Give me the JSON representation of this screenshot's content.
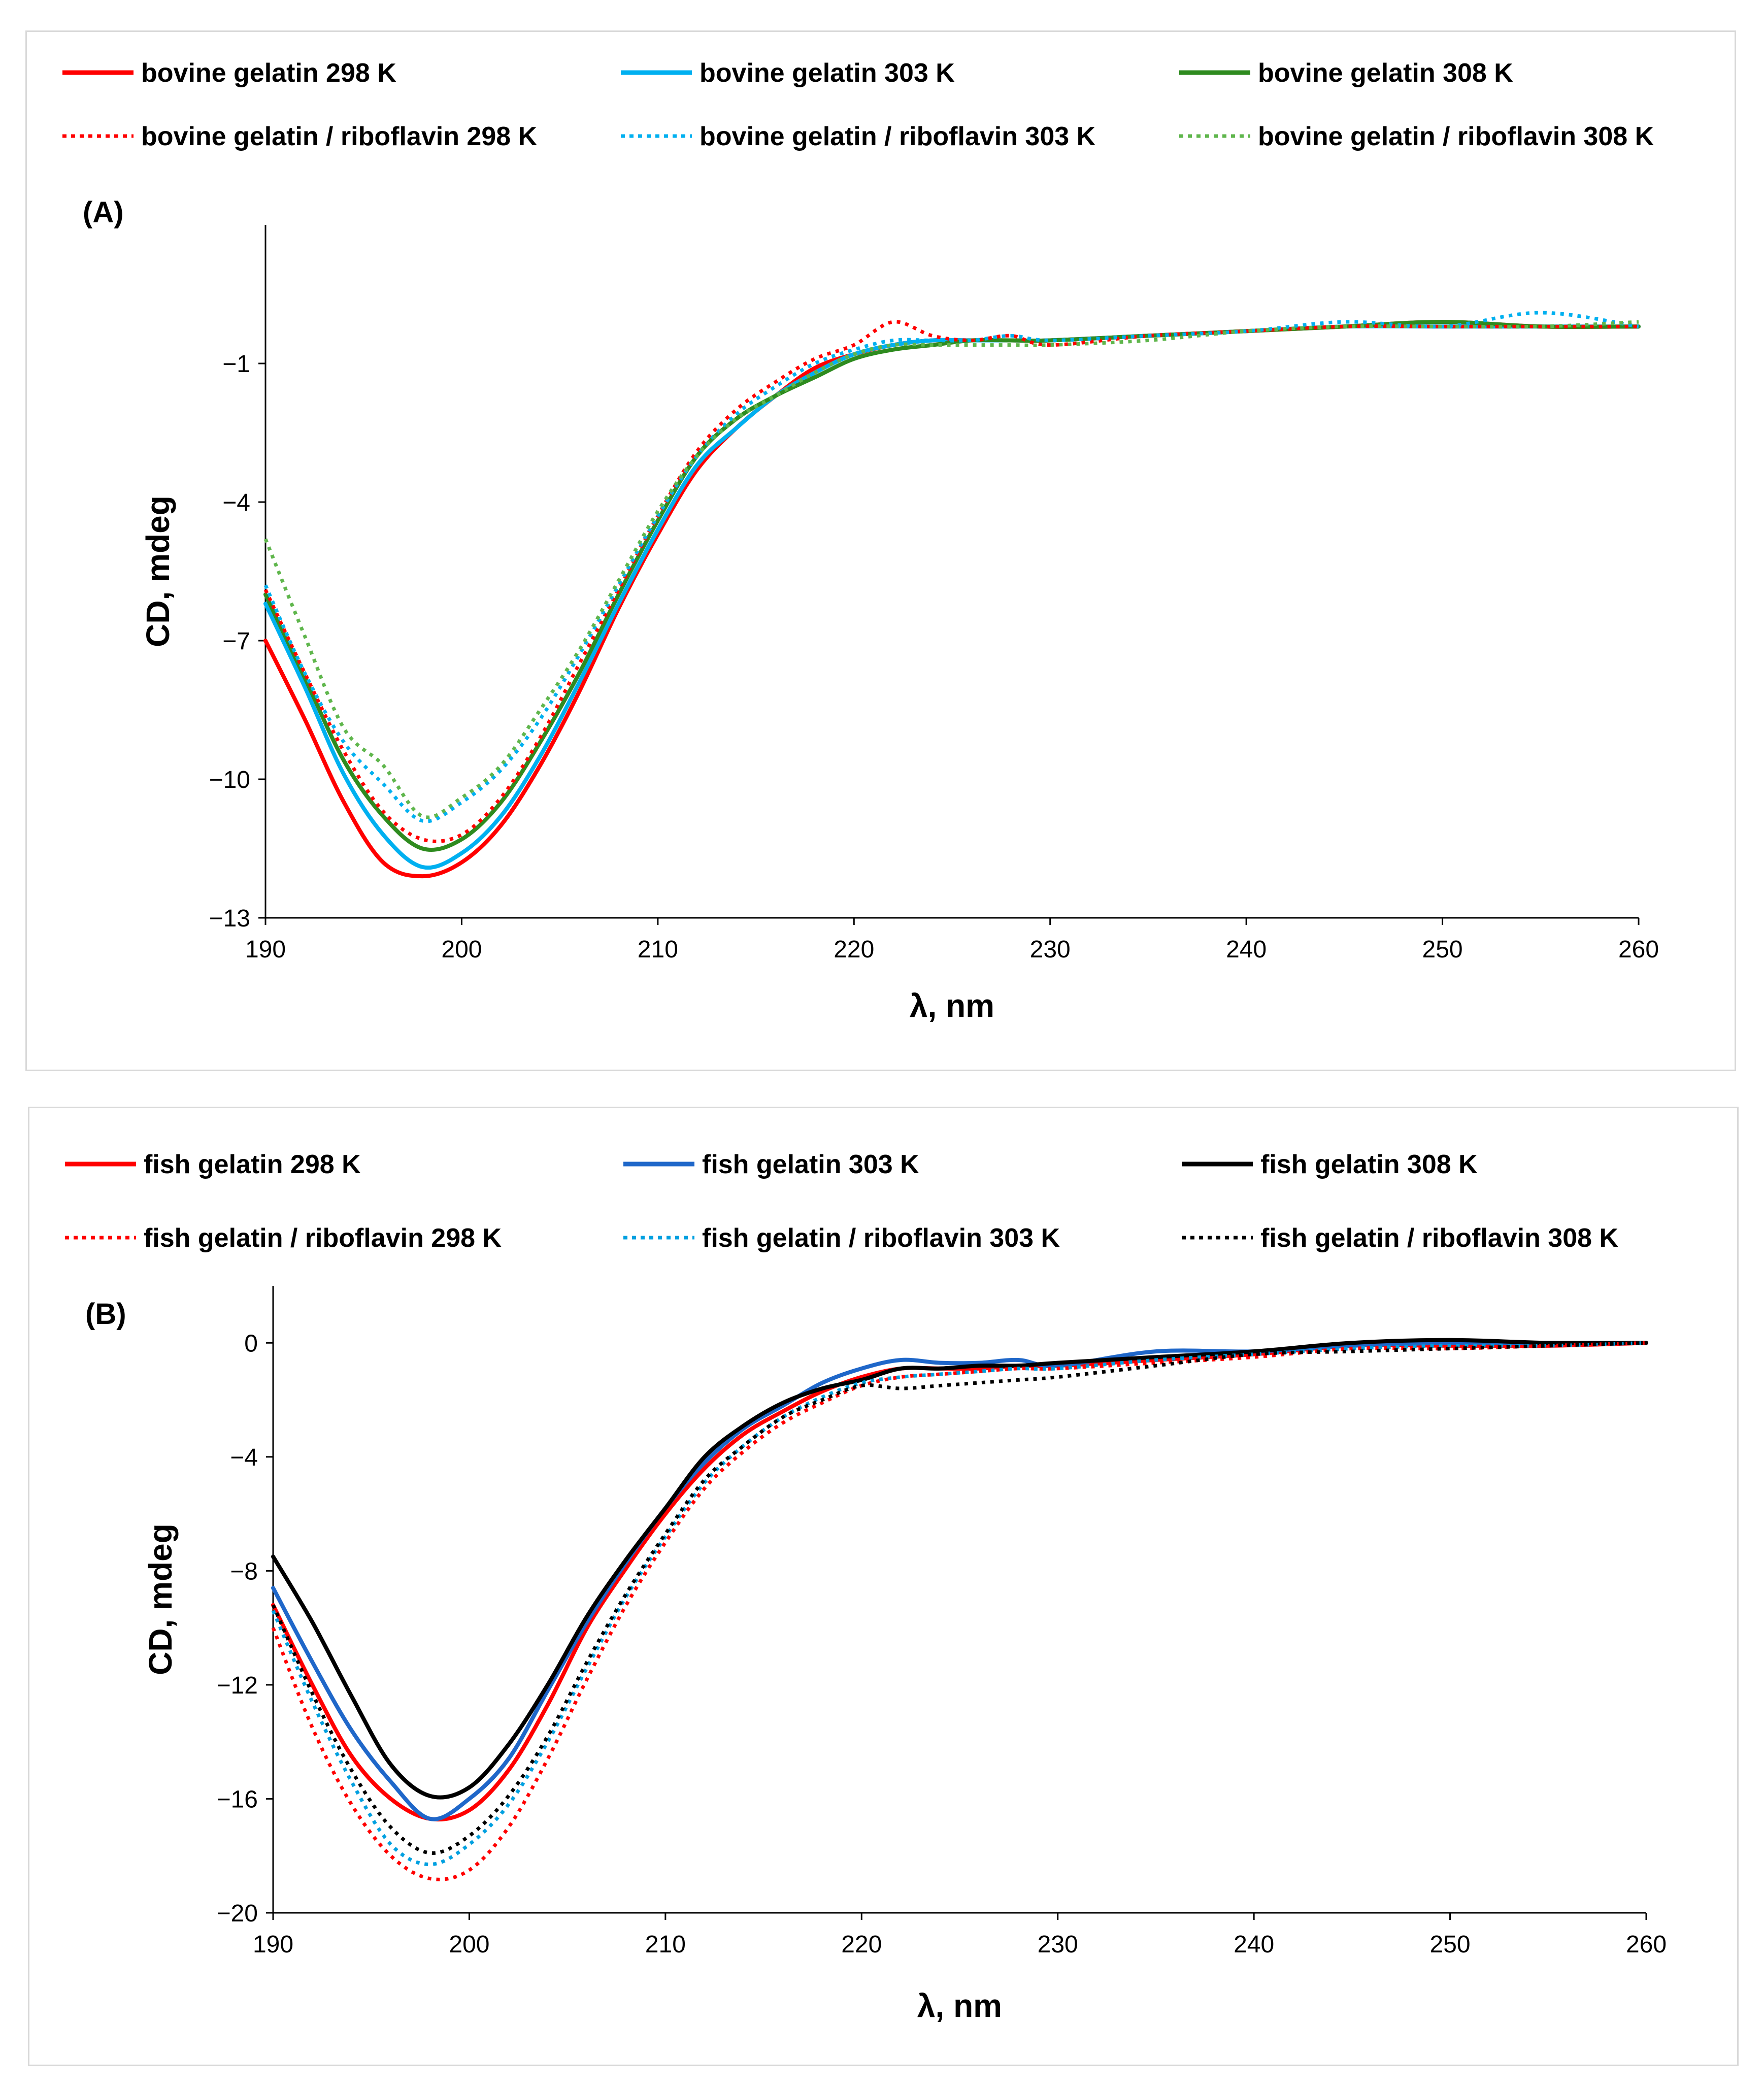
{
  "chart_data": [
    {
      "type": "line",
      "panel_label": "(A)",
      "xlabel": "λ, nm",
      "ylabel": "CD, mdeg",
      "xlim": [
        190,
        260
      ],
      "ylim": [
        -13,
        2
      ],
      "xticks": [
        190,
        200,
        210,
        220,
        230,
        240,
        250,
        260
      ],
      "yticks": [
        -1,
        -4,
        -7,
        -10,
        -13
      ],
      "xtick_labels": [
        "190",
        "200",
        "210",
        "220",
        "230",
        "240",
        "250",
        "260"
      ],
      "ytick_labels": [
        "−1",
        "−4",
        "−7",
        "−10",
        "−13"
      ],
      "grid": false,
      "legend": "top",
      "series": [
        {
          "name": "bovine gelatin 298 K",
          "color": "#ff0000",
          "style": "solid",
          "x": [
            190,
            192,
            194,
            196,
            198,
            200,
            202,
            204,
            206,
            208,
            210,
            212,
            214,
            216,
            218,
            220,
            222,
            224,
            226,
            228,
            230,
            235,
            240,
            245,
            250,
            255,
            260
          ],
          "y": [
            -7.0,
            -8.7,
            -10.5,
            -11.8,
            -12.1,
            -11.8,
            -11.0,
            -9.7,
            -8.1,
            -6.3,
            -4.7,
            -3.3,
            -2.4,
            -1.7,
            -1.1,
            -0.8,
            -0.6,
            -0.5,
            -0.5,
            -0.5,
            -0.5,
            -0.4,
            -0.3,
            -0.2,
            -0.1,
            -0.2,
            -0.2
          ]
        },
        {
          "name": "bovine gelatin 303 K",
          "color": "#00b0f0",
          "style": "solid",
          "x": [
            190,
            192,
            194,
            196,
            198,
            200,
            202,
            204,
            206,
            208,
            210,
            212,
            214,
            216,
            218,
            220,
            222,
            224,
            226,
            228,
            230,
            235,
            240,
            245,
            250,
            255,
            260
          ],
          "y": [
            -6.2,
            -8.0,
            -9.9,
            -11.2,
            -11.9,
            -11.6,
            -10.8,
            -9.5,
            -7.9,
            -6.2,
            -4.6,
            -3.2,
            -2.4,
            -1.7,
            -1.2,
            -0.8,
            -0.6,
            -0.5,
            -0.5,
            -0.5,
            -0.5,
            -0.4,
            -0.3,
            -0.2,
            -0.2,
            -0.2,
            -0.2
          ]
        },
        {
          "name": "bovine gelatin 308 K",
          "color": "#2e8b1f",
          "style": "solid",
          "x": [
            190,
            192,
            194,
            196,
            198,
            200,
            202,
            204,
            206,
            208,
            210,
            212,
            214,
            216,
            218,
            220,
            222,
            224,
            226,
            228,
            230,
            235,
            240,
            245,
            250,
            255,
            260
          ],
          "y": [
            -6.0,
            -7.8,
            -9.6,
            -10.8,
            -11.5,
            -11.3,
            -10.5,
            -9.2,
            -7.7,
            -6.0,
            -4.4,
            -3.0,
            -2.2,
            -1.7,
            -1.3,
            -0.9,
            -0.7,
            -0.6,
            -0.5,
            -0.5,
            -0.5,
            -0.4,
            -0.3,
            -0.2,
            -0.1,
            -0.2,
            -0.2
          ]
        },
        {
          "name": "bovine gelatin / riboflavin 298 K",
          "color": "#ff0000",
          "style": "dotted",
          "x": [
            190,
            192,
            194,
            196,
            198,
            200,
            202,
            204,
            206,
            208,
            210,
            212,
            214,
            216,
            218,
            220,
            222,
            224,
            226,
            228,
            230,
            235,
            240,
            245,
            250,
            255,
            260
          ],
          "y": [
            -5.9,
            -7.7,
            -9.4,
            -10.7,
            -11.3,
            -11.2,
            -10.4,
            -9.1,
            -7.5,
            -5.9,
            -4.3,
            -2.9,
            -2.0,
            -1.4,
            -0.9,
            -0.6,
            -0.1,
            -0.4,
            -0.5,
            -0.4,
            -0.6,
            -0.4,
            -0.3,
            -0.2,
            -0.2,
            -0.2,
            -0.2
          ]
        },
        {
          "name": "bovine gelatin / riboflavin 303 K",
          "color": "#00b0f0",
          "style": "dotted",
          "x": [
            190,
            192,
            194,
            196,
            198,
            200,
            202,
            204,
            206,
            208,
            210,
            212,
            214,
            216,
            218,
            220,
            222,
            224,
            226,
            228,
            230,
            235,
            240,
            245,
            250,
            255,
            260
          ],
          "y": [
            -5.8,
            -7.7,
            -9.2,
            -10.1,
            -10.9,
            -10.5,
            -9.8,
            -8.7,
            -7.3,
            -5.8,
            -4.3,
            -3.0,
            -2.1,
            -1.5,
            -1.0,
            -0.7,
            -0.5,
            -0.5,
            -0.5,
            -0.4,
            -0.5,
            -0.4,
            -0.3,
            -0.1,
            -0.2,
            0.1,
            -0.2
          ]
        },
        {
          "name": "bovine gelatin / riboflavin 308 K",
          "color": "#5fb64c",
          "style": "dotted",
          "x": [
            190,
            192,
            194,
            196,
            198,
            200,
            202,
            204,
            206,
            208,
            210,
            212,
            214,
            216,
            218,
            220,
            222,
            224,
            226,
            228,
            230,
            235,
            240,
            245,
            250,
            255,
            260
          ],
          "y": [
            -4.8,
            -6.9,
            -8.9,
            -9.7,
            -10.8,
            -10.4,
            -9.7,
            -8.5,
            -7.2,
            -5.7,
            -4.2,
            -3.0,
            -2.2,
            -1.7,
            -1.2,
            -0.8,
            -0.6,
            -0.6,
            -0.6,
            -0.6,
            -0.6,
            -0.5,
            -0.3,
            -0.2,
            -0.2,
            -0.2,
            -0.1
          ]
        }
      ]
    },
    {
      "type": "line",
      "panel_label": "(B)",
      "xlabel": "λ, nm",
      "ylabel": "CD, mdeg",
      "xlim": [
        190,
        260
      ],
      "ylim": [
        -20,
        2
      ],
      "xticks": [
        190,
        200,
        210,
        220,
        230,
        240,
        250,
        260
      ],
      "yticks": [
        0,
        -4,
        -8,
        -12,
        -16,
        -20
      ],
      "xtick_labels": [
        "190",
        "200",
        "210",
        "220",
        "230",
        "240",
        "250",
        "260"
      ],
      "ytick_labels": [
        "0",
        "−4",
        "−8",
        "−12",
        "−16",
        "−20"
      ],
      "grid": false,
      "legend": "top",
      "series": [
        {
          "name": "fish gelatin 298 K",
          "color": "#ff0000",
          "style": "solid",
          "x": [
            190,
            192,
            194,
            196,
            198,
            200,
            202,
            204,
            206,
            208,
            210,
            212,
            214,
            216,
            218,
            220,
            222,
            224,
            226,
            228,
            230,
            235,
            240,
            245,
            250,
            255,
            260
          ],
          "y": [
            -9.2,
            -12.0,
            -14.5,
            -16.0,
            -16.7,
            -16.4,
            -15.0,
            -12.7,
            -10.0,
            -7.9,
            -6.0,
            -4.4,
            -3.2,
            -2.4,
            -1.7,
            -1.2,
            -0.9,
            -0.9,
            -0.9,
            -0.8,
            -0.8,
            -0.6,
            -0.4,
            -0.1,
            -0.1,
            -0.1,
            0.0
          ]
        },
        {
          "name": "fish gelatin 303 K",
          "color": "#1f67c9",
          "style": "solid",
          "x": [
            190,
            192,
            194,
            196,
            198,
            200,
            202,
            204,
            206,
            208,
            210,
            212,
            214,
            216,
            218,
            220,
            222,
            224,
            226,
            228,
            230,
            235,
            240,
            245,
            250,
            255,
            260
          ],
          "y": [
            -8.6,
            -11.2,
            -13.6,
            -15.4,
            -16.7,
            -16.0,
            -14.6,
            -12.2,
            -9.8,
            -7.7,
            -5.8,
            -4.2,
            -3.0,
            -2.2,
            -1.4,
            -0.9,
            -0.6,
            -0.7,
            -0.7,
            -0.6,
            -0.8,
            -0.3,
            -0.3,
            -0.1,
            0.0,
            0.0,
            0.0
          ]
        },
        {
          "name": "fish gelatin 308 K",
          "color": "#000000",
          "style": "solid",
          "x": [
            190,
            192,
            194,
            196,
            198,
            200,
            202,
            204,
            206,
            208,
            210,
            212,
            214,
            216,
            218,
            220,
            222,
            224,
            226,
            228,
            230,
            235,
            240,
            245,
            250,
            255,
            260
          ],
          "y": [
            -7.5,
            -9.8,
            -12.4,
            -14.8,
            -15.9,
            -15.6,
            -14.1,
            -12.0,
            -9.6,
            -7.6,
            -5.8,
            -4.0,
            -2.9,
            -2.1,
            -1.6,
            -1.3,
            -0.9,
            -0.9,
            -0.8,
            -0.8,
            -0.7,
            -0.5,
            -0.3,
            0.0,
            0.1,
            0.0,
            0.0
          ]
        },
        {
          "name": "fish gelatin / riboflavin 298 K",
          "color": "#ff0000",
          "style": "dotted",
          "x": [
            190,
            192,
            194,
            196,
            198,
            200,
            202,
            204,
            206,
            208,
            210,
            212,
            214,
            216,
            218,
            220,
            222,
            224,
            226,
            228,
            230,
            235,
            240,
            245,
            250,
            255,
            260
          ],
          "y": [
            -10.0,
            -13.5,
            -16.2,
            -18.0,
            -18.8,
            -18.5,
            -17.0,
            -14.6,
            -11.8,
            -9.2,
            -7.0,
            -5.1,
            -3.8,
            -2.8,
            -2.1,
            -1.5,
            -1.2,
            -1.1,
            -1.0,
            -0.9,
            -0.9,
            -0.7,
            -0.5,
            -0.2,
            -0.2,
            -0.1,
            0.0
          ]
        },
        {
          "name": "fish gelatin / riboflavin 303 K",
          "color": "#00a0e0",
          "style": "dotted",
          "x": [
            190,
            192,
            194,
            196,
            198,
            200,
            202,
            204,
            206,
            208,
            210,
            212,
            214,
            216,
            218,
            220,
            222,
            224,
            226,
            228,
            230,
            235,
            240,
            245,
            250,
            255,
            260
          ],
          "y": [
            -9.4,
            -12.6,
            -15.4,
            -17.6,
            -18.3,
            -17.6,
            -16.2,
            -14.0,
            -11.4,
            -8.9,
            -6.8,
            -4.9,
            -3.6,
            -2.6,
            -1.9,
            -1.4,
            -1.2,
            -1.1,
            -1.0,
            -0.9,
            -0.9,
            -0.6,
            -0.4,
            -0.2,
            -0.1,
            -0.1,
            0.0
          ]
        },
        {
          "name": "fish gelatin / riboflavin 308 K",
          "color": "#000000",
          "style": "dotted",
          "x": [
            190,
            192,
            194,
            196,
            198,
            200,
            202,
            204,
            206,
            208,
            210,
            212,
            214,
            216,
            218,
            220,
            222,
            224,
            226,
            228,
            230,
            235,
            240,
            245,
            250,
            255,
            260
          ],
          "y": [
            -9.2,
            -12.3,
            -15.0,
            -17.0,
            -17.9,
            -17.3,
            -15.9,
            -13.8,
            -11.2,
            -8.8,
            -6.7,
            -4.8,
            -3.6,
            -2.6,
            -2.0,
            -1.5,
            -1.6,
            -1.5,
            -1.4,
            -1.3,
            -1.2,
            -0.8,
            -0.4,
            -0.3,
            -0.2,
            -0.1,
            0.0
          ]
        }
      ]
    }
  ]
}
